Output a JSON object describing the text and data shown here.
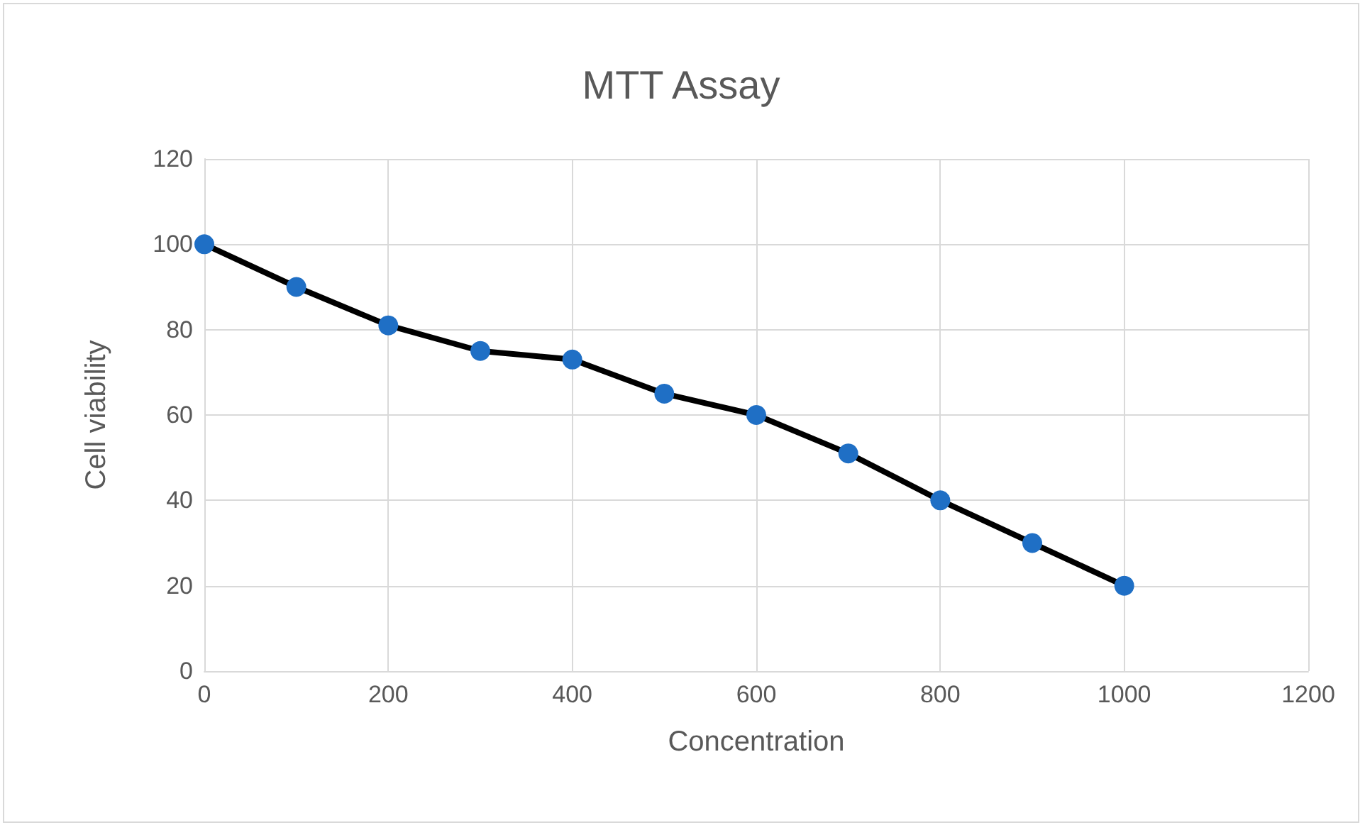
{
  "chart_data": {
    "type": "line",
    "title": "MTT Assay",
    "xlabel": "Concentration",
    "ylabel": "Cell viability",
    "x": [
      0,
      100,
      200,
      300,
      400,
      500,
      600,
      700,
      800,
      900,
      1000
    ],
    "series": [
      {
        "color": "#000000",
        "colors": [
          "#1f6fc5",
          "#1f6fc5",
          "#1f6fc5",
          "#1f6fc5",
          "#1f6fc5",
          "#1f6fc5",
          "#1f6fc5",
          "#1f6fc5",
          "#1f6fc5",
          "#1f6fc5",
          "#1f6fc5"
        ],
        "values": [
          100,
          90,
          81,
          75,
          73,
          65,
          60,
          51,
          40,
          30,
          20
        ]
      }
    ],
    "xlim": [
      0,
      1200
    ],
    "xticks": [
      0,
      200,
      400,
      600,
      800,
      1000,
      1200
    ],
    "ylim": [
      0,
      120
    ],
    "yticks": [
      0,
      20,
      40,
      60,
      80,
      100,
      120
    ],
    "grid": true,
    "marker": "circle",
    "line_style": "solid"
  }
}
